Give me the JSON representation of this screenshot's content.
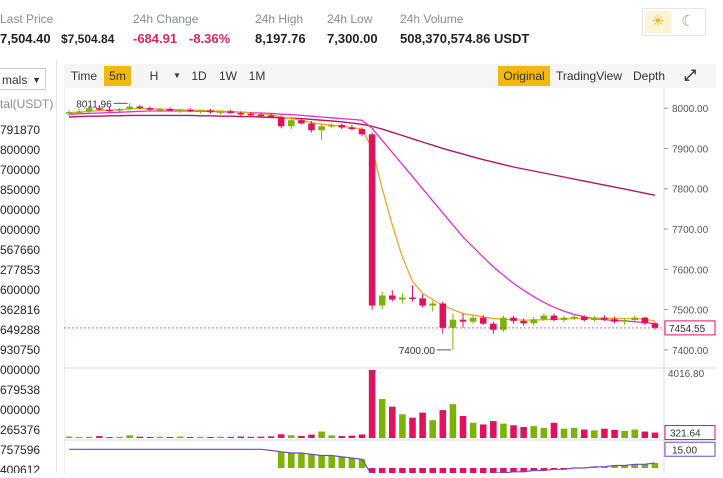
{
  "header": {
    "last_price": {
      "label": "Last Price",
      "value": "7,504.40",
      "secondary": "$7,504.84"
    },
    "change_24h": {
      "label": "24h Change",
      "value": "-684.91",
      "percent": "-8.36%"
    },
    "high_24h": {
      "label": "24h High",
      "value": "8,197.76"
    },
    "low_24h": {
      "label": "24h Low",
      "value": "7,300.00"
    },
    "volume_24h": {
      "label": "24h Volume",
      "value": "508,370,574.86 USDT"
    },
    "theme": {
      "light_icon": "sun-icon",
      "dark_icon": "moon-icon"
    }
  },
  "left_panel": {
    "select_value": "mals",
    "column_header": "tal(USDT)",
    "values": [
      "791870",
      "800000",
      "700000",
      "850000",
      "000000",
      "000000",
      "567660",
      "277853",
      "600000",
      "362816",
      "649288",
      "930750",
      "000000",
      "679538",
      "000000",
      "265376",
      "757596",
      "400612"
    ]
  },
  "toolbar": {
    "left": [
      "Time",
      "5m",
      "H",
      "1D",
      "1W",
      "1M"
    ],
    "active_interval": "5m",
    "right": [
      "Original",
      "TradingView",
      "Depth"
    ],
    "active_view": "Original",
    "expand_icon": "fullscreen-icon"
  },
  "chart_data": {
    "type": "candlestick",
    "price_axis": {
      "ticks": [
        "8000.00",
        "7900.00",
        "7800.00",
        "7700.00",
        "7600.00",
        "7500.00",
        "7400.00"
      ],
      "range": [
        7360,
        8050
      ]
    },
    "current_price_label": "7454.55",
    "annotations": [
      {
        "text": "8011.96"
      },
      {
        "text": "7400.00"
      }
    ],
    "volume_axis": {
      "max_label": "4016.80",
      "current_label": "321.64"
    },
    "indicator_label": "15.00",
    "ohlc": [
      [
        7988,
        7995,
        7980,
        7990
      ],
      [
        7990,
        7998,
        7985,
        7992
      ],
      [
        7992,
        8005,
        7988,
        8000
      ],
      [
        8000,
        8008,
        7994,
        7996
      ],
      [
        7996,
        8002,
        7990,
        7994
      ],
      [
        7994,
        8000,
        7992,
        7998
      ],
      [
        7998,
        8011.96,
        7995,
        8004
      ],
      [
        8004,
        8008,
        7998,
        8000
      ],
      [
        8000,
        8004,
        7994,
        7996
      ],
      [
        7996,
        8000,
        7990,
        7998
      ],
      [
        7998,
        8002,
        7992,
        7994
      ],
      [
        7994,
        7998,
        7988,
        7996
      ],
      [
        7996,
        8000,
        7990,
        7992
      ],
      [
        7992,
        7996,
        7986,
        7994
      ],
      [
        7994,
        7998,
        7986,
        7990
      ],
      [
        7990,
        7994,
        7984,
        7992
      ],
      [
        7992,
        7996,
        7986,
        7988
      ],
      [
        7988,
        7992,
        7980,
        7986
      ],
      [
        7986,
        7990,
        7978,
        7984
      ],
      [
        7984,
        7988,
        7976,
        7982
      ],
      [
        7982,
        7986,
        7975,
        7978
      ],
      [
        7978,
        7982,
        7950,
        7955
      ],
      [
        7955,
        7975,
        7948,
        7970
      ],
      [
        7970,
        7976,
        7960,
        7962
      ],
      [
        7962,
        7968,
        7940,
        7945
      ],
      [
        7945,
        7960,
        7920,
        7955
      ],
      [
        7955,
        7962,
        7950,
        7958
      ],
      [
        7958,
        7962,
        7948,
        7952
      ],
      [
        7952,
        7958,
        7945,
        7948
      ],
      [
        7948,
        7952,
        7930,
        7935
      ],
      [
        7935,
        7940,
        7500,
        7510
      ],
      [
        7510,
        7545,
        7500,
        7535
      ],
      [
        7535,
        7548,
        7520,
        7525
      ],
      [
        7525,
        7540,
        7515,
        7530
      ],
      [
        7530,
        7560,
        7520,
        7528
      ],
      [
        7528,
        7538,
        7505,
        7510
      ],
      [
        7510,
        7522,
        7495,
        7515
      ],
      [
        7515,
        7520,
        7440,
        7455
      ],
      [
        7455,
        7490,
        7400,
        7475
      ],
      [
        7475,
        7490,
        7455,
        7470
      ],
      [
        7470,
        7485,
        7465,
        7480
      ],
      [
        7480,
        7486,
        7462,
        7465
      ],
      [
        7465,
        7470,
        7440,
        7450
      ],
      [
        7450,
        7485,
        7445,
        7480
      ],
      [
        7480,
        7485,
        7465,
        7472
      ],
      [
        7472,
        7478,
        7460,
        7466
      ],
      [
        7466,
        7482,
        7460,
        7476
      ],
      [
        7476,
        7490,
        7472,
        7485
      ],
      [
        7485,
        7490,
        7470,
        7474
      ],
      [
        7474,
        7485,
        7468,
        7480
      ],
      [
        7480,
        7488,
        7474,
        7482
      ],
      [
        7482,
        7486,
        7470,
        7474
      ],
      [
        7474,
        7484,
        7470,
        7480
      ],
      [
        7480,
        7486,
        7472,
        7476
      ],
      [
        7476,
        7482,
        7466,
        7470
      ],
      [
        7470,
        7478,
        7462,
        7474
      ],
      [
        7474,
        7484,
        7470,
        7480
      ],
      [
        7480,
        7482,
        7462,
        7466
      ],
      [
        7466,
        7470,
        7450,
        7455
      ]
    ],
    "volume": [
      90,
      60,
      75,
      110,
      55,
      70,
      160,
      80,
      65,
      70,
      60,
      85,
      55,
      70,
      60,
      75,
      65,
      90,
      70,
      80,
      95,
      220,
      160,
      120,
      200,
      380,
      150,
      120,
      140,
      210,
      4016.8,
      2300,
      1850,
      1400,
      1200,
      1500,
      1050,
      1650,
      2000,
      1300,
      900,
      800,
      1000,
      850,
      750,
      650,
      700,
      600,
      900,
      550,
      600,
      500,
      450,
      550,
      480,
      420,
      500,
      380,
      321.64
    ],
    "ma_fast": [
      7988,
      7990,
      7992,
      7994,
      7995,
      7996,
      7998,
      7999,
      7999,
      7998,
      7997,
      7996,
      7995,
      7995,
      7994,
      7993,
      7992,
      7990,
      7988,
      7986,
      7984,
      7978,
      7974,
      7970,
      7964,
      7960,
      7958,
      7955,
      7952,
      7948,
      7900,
      7800,
      7710,
      7630,
      7570,
      7540,
      7525,
      7510,
      7500,
      7490,
      7486,
      7482,
      7478,
      7476,
      7475,
      7474,
      7474,
      7475,
      7476,
      7477,
      7478,
      7478,
      7479,
      7479,
      7478,
      7478,
      7478,
      7476,
      7472
    ],
    "ma_mid": [
      7985,
      7986,
      7987,
      7988,
      7989,
      7990,
      7991,
      7992,
      7993,
      7993,
      7993,
      7993,
      7993,
      7992,
      7992,
      7991,
      7991,
      7990,
      7989,
      7988,
      7987,
      7985,
      7984,
      7982,
      7980,
      7978,
      7976,
      7974,
      7972,
      7970,
      7950,
      7920,
      7890,
      7860,
      7830,
      7800,
      7770,
      7740,
      7710,
      7680,
      7655,
      7630,
      7606,
      7585,
      7565,
      7548,
      7532,
      7518,
      7506,
      7496,
      7488,
      7482,
      7478,
      7475,
      7473,
      7472,
      7470,
      7468,
      7465
    ],
    "ma_slow": [
      7978,
      7979,
      7980,
      7980,
      7981,
      7981,
      7982,
      7982,
      7982,
      7982,
      7982,
      7982,
      7982,
      7981,
      7981,
      7980,
      7980,
      7979,
      7979,
      7978,
      7977,
      7976,
      7975,
      7974,
      7972,
      7970,
      7968,
      7966,
      7963,
      7960,
      7955,
      7948,
      7940,
      7932,
      7924,
      7916,
      7908,
      7900,
      7893,
      7886,
      7879,
      7872,
      7866,
      7860,
      7854,
      7849,
      7844,
      7839,
      7834,
      7829,
      7824,
      7819,
      7814,
      7809,
      7804,
      7799,
      7794,
      7789,
      7784
    ],
    "indicator": [
      15,
      15,
      15,
      15,
      15,
      15,
      15,
      15,
      15,
      15,
      15,
      15,
      15,
      15,
      15,
      15,
      15,
      15,
      15,
      15,
      14,
      13,
      12,
      12,
      11,
      10,
      10,
      9,
      8,
      7,
      -6,
      -12,
      -14,
      -13,
      -12,
      -11,
      -10,
      -9,
      -8,
      -7,
      -6,
      -5,
      -4,
      -4,
      -3,
      -3,
      -2,
      -2,
      -1,
      -1,
      0,
      0,
      1,
      1,
      2,
      2,
      3,
      3,
      4
    ],
    "colors": {
      "up": "#7cb305",
      "down": "#e0115f",
      "ma_fast": "#f5a623",
      "ma_mid": "#e82bd3",
      "ma_slow": "#b0195e",
      "indicator_line": "#6a4cc2"
    }
  }
}
